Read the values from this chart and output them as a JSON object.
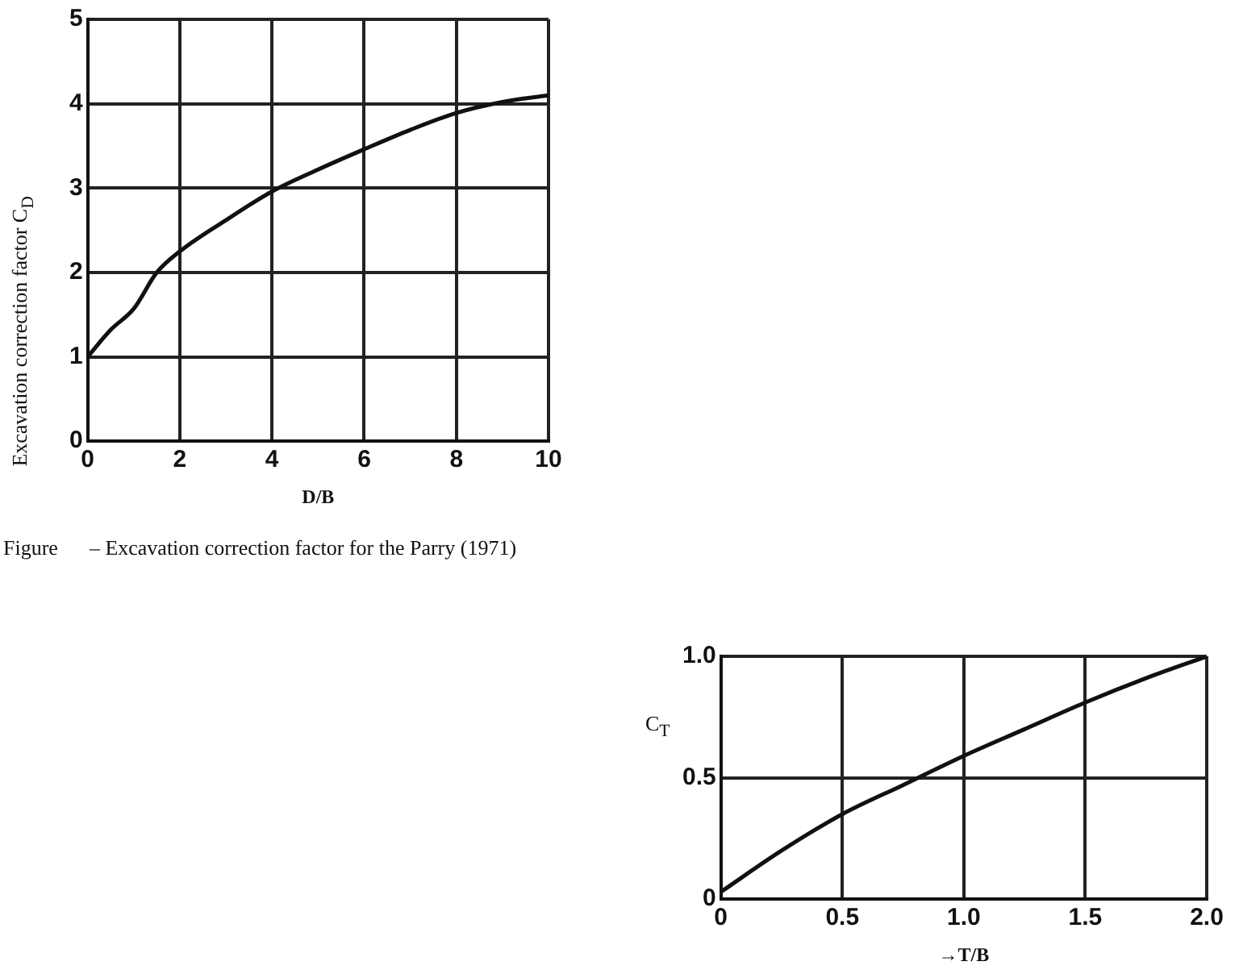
{
  "chart_data": [
    {
      "type": "line",
      "xlabel": "D/B",
      "ylabel": "Excavation correction factor C$_{D}$",
      "x": [
        0,
        0.5,
        1,
        1.5,
        2,
        3,
        4,
        5,
        6,
        7,
        8,
        9,
        10
      ],
      "series": [
        {
          "color": "#111111",
          "values": [
            1,
            1.32,
            1.57,
            2.0,
            2.25,
            2.62,
            2.96,
            3.22,
            3.46,
            3.69,
            3.89,
            4.02,
            4.1
          ]
        }
      ],
      "xlim": [
        0,
        10
      ],
      "xticks": [
        0,
        2,
        4,
        6,
        8,
        10
      ],
      "ylim": [
        0,
        5
      ],
      "yticks": [
        0,
        1,
        2,
        3,
        4,
        5
      ],
      "grid": true,
      "marker": "none",
      "annotations": [
        "Figure      – Excavation correction factor for the Parry (1971)"
      ]
    },
    {
      "type": "line",
      "xlabel": "→T/B",
      "ylabel": "C$_{T}$",
      "x": [
        0,
        0.25,
        0.5,
        0.75,
        1,
        1.25,
        1.5,
        1.75,
        2
      ],
      "series": [
        {
          "color": "#111111",
          "values": [
            0.03,
            0.2,
            0.35,
            0.47,
            0.59,
            0.7,
            0.81,
            0.91,
            1.0
          ]
        }
      ],
      "xlim": [
        0,
        2
      ],
      "xticks": [
        0,
        0.5,
        {
          "value": 1,
          "label": "1.0"
        },
        1.5,
        {
          "value": 2,
          "label": "2.0"
        }
      ],
      "ylim": [
        0,
        1
      ],
      "yticks": [
        0,
        0.5,
        {
          "value": 1,
          "label": "1.0"
        }
      ],
      "grid": true,
      "marker": "none"
    }
  ]
}
